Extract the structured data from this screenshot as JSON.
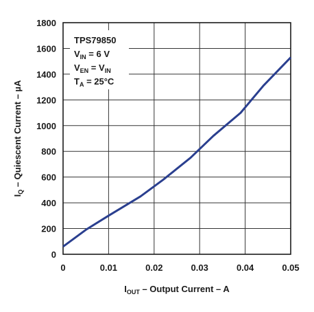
{
  "chart_data": {
    "type": "line",
    "title": "",
    "xlabel": {
      "main": "I",
      "sub": "OUT",
      "rest": " – Output Current – A"
    },
    "ylabel": {
      "main": "I",
      "sub": "Q",
      "rest": " – Quiescent Current – µA"
    },
    "xlim": [
      0,
      0.05
    ],
    "ylim": [
      0,
      1800
    ],
    "x_ticks": [
      "0",
      "0.01",
      "0.02",
      "0.03",
      "0.04",
      "0.05"
    ],
    "y_ticks": [
      "0",
      "200",
      "400",
      "600",
      "800",
      "1000",
      "1200",
      "1400",
      "1600",
      "1800"
    ],
    "grid": true,
    "series": [
      {
        "color": "#2a3f8f",
        "x": [
          0,
          0.005,
          0.01,
          0.017,
          0.022,
          0.028,
          0.033,
          0.039,
          0.044,
          0.05
        ],
        "y": [
          60,
          190,
          300,
          450,
          580,
          750,
          920,
          1100,
          1310,
          1530
        ]
      }
    ],
    "annotations": [
      {
        "main": "TPS79850"
      },
      {
        "main": "V",
        "sub": "IN",
        "rest": " = 6 V"
      },
      {
        "main": "V",
        "sub": "EN",
        "rest": " = V",
        "sub2": "IN"
      },
      {
        "main": "T",
        "sub": "A",
        "rest": " = 25°C"
      }
    ]
  }
}
